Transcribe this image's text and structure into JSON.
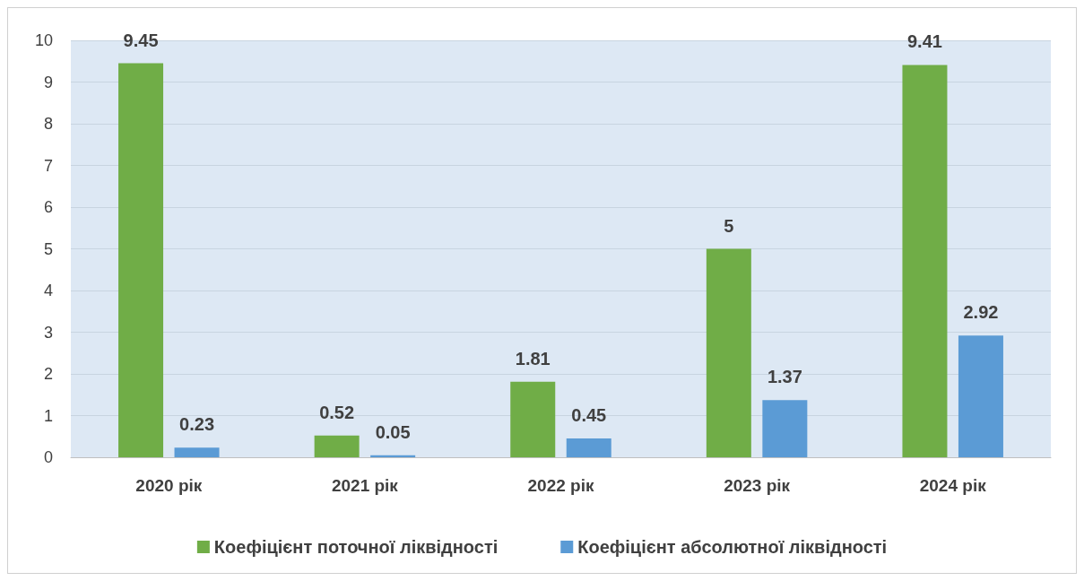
{
  "chart_data": {
    "type": "bar",
    "categories": [
      "2020 рік",
      "2021 рік",
      "2022 рік",
      "2023 рік",
      "2024 рік"
    ],
    "series": [
      {
        "name": "Коефіцієнт поточної ліквідності",
        "color": "#70ad47",
        "values": [
          9.45,
          0.52,
          1.81,
          5,
          9.41
        ]
      },
      {
        "name": "Коефіцієнт абсолютної ліквідності",
        "color": "#5b9bd5",
        "values": [
          0.23,
          0.05,
          0.45,
          1.37,
          2.92
        ]
      }
    ],
    "ylim": [
      0,
      10
    ],
    "yticks": [
      0,
      1,
      2,
      3,
      4,
      5,
      6,
      7,
      8,
      9,
      10
    ],
    "grid": "y",
    "legend": "bottom",
    "data_labels": true
  }
}
